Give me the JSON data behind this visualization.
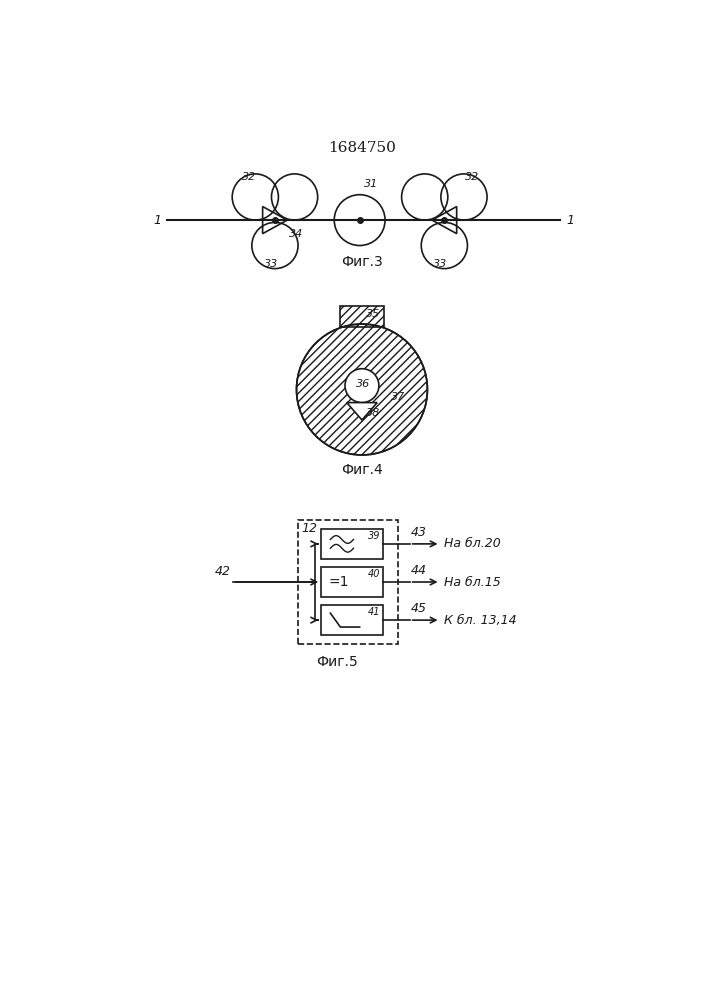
{
  "title": "1684750",
  "bg_color": "#ffffff",
  "fig3_label": "Фиг.3",
  "fig4_label": "Фиг.4",
  "fig5_label": "Фиг.5",
  "line_color": "#1a1a1a",
  "hatch_color": "#1a1a1a"
}
